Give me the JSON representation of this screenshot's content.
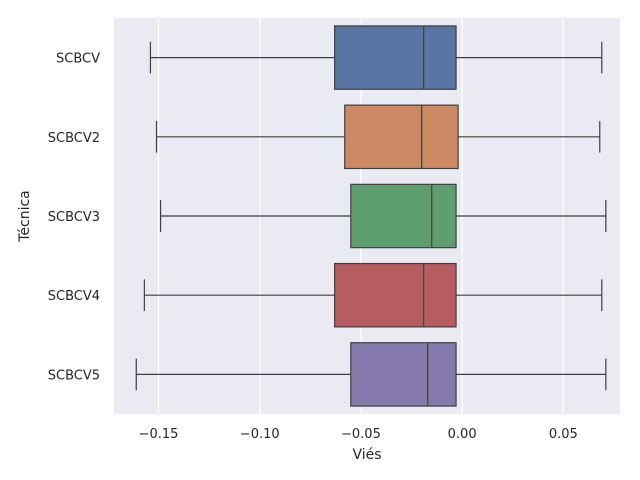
{
  "chart_data": {
    "type": "boxplot",
    "orientation": "horizontal",
    "xlabel": "Viés",
    "ylabel": "Técnica",
    "xlim": [
      -0.172,
      0.078
    ],
    "xticks": [
      -0.15,
      -0.1,
      -0.05,
      0.0,
      0.05
    ],
    "xtick_labels": [
      "−0.15",
      "−0.10",
      "−0.05",
      "0.00",
      "0.05"
    ],
    "grid": true,
    "categories": [
      "SCBCV",
      "SCBCV2",
      "SCBCV3",
      "SCBCV4",
      "SCBCV5"
    ],
    "boxes": [
      {
        "label": "SCBCV",
        "whislo": -0.154,
        "q1": -0.063,
        "med": -0.019,
        "q3": -0.003,
        "whishi": 0.069,
        "color": "#5875a4"
      },
      {
        "label": "SCBCV2",
        "whislo": -0.151,
        "q1": -0.058,
        "med": -0.02,
        "q3": -0.002,
        "whishi": 0.068,
        "color": "#cc8963"
      },
      {
        "label": "SCBCV3",
        "whislo": -0.149,
        "q1": -0.055,
        "med": -0.015,
        "q3": -0.003,
        "whishi": 0.071,
        "color": "#5f9e6e"
      },
      {
        "label": "SCBCV4",
        "whislo": -0.157,
        "q1": -0.063,
        "med": -0.019,
        "q3": -0.003,
        "whishi": 0.069,
        "color": "#b55d60"
      },
      {
        "label": "SCBCV5",
        "whislo": -0.161,
        "q1": -0.055,
        "med": -0.017,
        "q3": -0.003,
        "whishi": 0.071,
        "color": "#857aab"
      }
    ]
  }
}
